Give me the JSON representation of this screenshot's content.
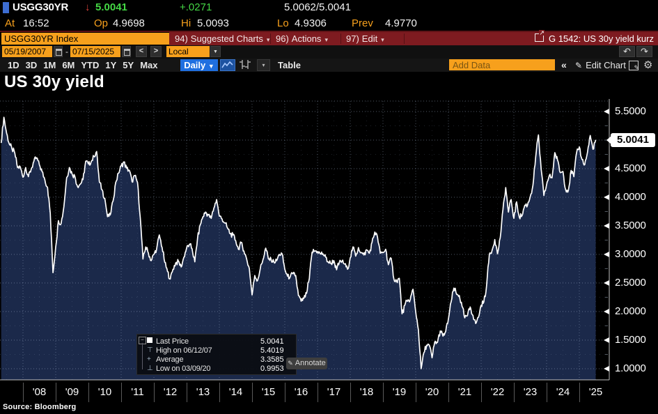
{
  "ticker": {
    "symbol": "USGG30YR",
    "last": "5.0041",
    "change": "+.0271",
    "bid_ask": "5.0062/5.0041",
    "at_label": "At",
    "time": "16:52",
    "open_label": "Op",
    "open": "4.9698",
    "high_label": "Hi",
    "high": "5.0093",
    "low_label": "Lo",
    "low": "4.9306",
    "prev_label": "Prev",
    "prev": "4.9770"
  },
  "menu": {
    "security_input": "USGG30YR Index",
    "suggested_key": "94)",
    "suggested_label": "Suggested Charts",
    "actions_key": "96)",
    "actions_label": "Actions",
    "edit_key": "97)",
    "edit_label": "Edit",
    "chart_ref": "G 1542: US 30y yield kurz"
  },
  "range": {
    "from": "05/19/2007",
    "separator": "-",
    "to": "07/15/2025",
    "currency": "Local CCY"
  },
  "toolbar": {
    "periods": [
      "1D",
      "3D",
      "1M",
      "6M",
      "YTD",
      "1Y",
      "5Y",
      "Max"
    ],
    "frequency": "Daily",
    "table": "Table",
    "add_data_placeholder": "Add Data",
    "collapse": "«",
    "edit_chart": "Edit Chart"
  },
  "icons": {
    "down_arrow": "↓",
    "capture_arrow": "↘",
    "export_arrow": "↗",
    "dropdown": "▾",
    "dropdown_solid": "▼",
    "prev": "<",
    "next": ">",
    "undo": "↶",
    "redo": "↷",
    "pencil": "✎",
    "gear": "⚙",
    "expander_minus": "−",
    "high_marker": "⊤",
    "avg_marker": "+",
    "low_marker": "⊥"
  },
  "colors": {
    "amber": "#f7a01c",
    "green": "#45d845",
    "menu_red": "#7e1b20",
    "down_red": "#e0443c",
    "active_blue": "#1f6fe0",
    "area_fill": "#1b294a",
    "line": "#ffffff"
  },
  "chart": {
    "title": "US 30y yield",
    "source": "Source: Bloomberg",
    "price_tag": "5.0041",
    "y_labels": [
      {
        "v": 5.5,
        "label": "5.5000"
      },
      {
        "v": 4.5,
        "label": "4.5000"
      },
      {
        "v": 4.0,
        "label": "4.0000"
      },
      {
        "v": 3.5,
        "label": "3.5000"
      },
      {
        "v": 3.0,
        "label": "3.0000"
      },
      {
        "v": 2.5,
        "label": "2.5000"
      },
      {
        "v": 2.0,
        "label": "2.0000"
      },
      {
        "v": 1.5,
        "label": "1.5000"
      },
      {
        "v": 1.0,
        "label": "1.0000"
      }
    ],
    "x_labels": [
      "'08",
      "'09",
      "'10",
      "'11",
      "'12",
      "'13",
      "'14",
      "'15",
      "'16",
      "'17",
      "'18",
      "'19",
      "'20",
      "'21",
      "'22",
      "'23",
      "'24",
      "'25"
    ],
    "legend": {
      "rows": [
        {
          "marker": "last",
          "label": "Last Price",
          "value": "5.0041"
        },
        {
          "marker": "high",
          "label": "High on 06/12/07",
          "value": "5.4019"
        },
        {
          "marker": "average",
          "label": "Average",
          "value": "3.3585"
        },
        {
          "marker": "low",
          "label": "Low on 03/09/20",
          "value": "0.9953"
        }
      ],
      "annotate": "Annotate"
    }
  },
  "chart_data": {
    "type": "line",
    "style": "line-with-area-fill",
    "title": "US 30y yield",
    "series_name": "USGG30YR Index (US 30y Treasury yield)",
    "x_start": "2007-05",
    "x_end": "2025-07",
    "frequency": "monthly",
    "ylim": [
      0.8,
      5.7
    ],
    "y_ticks": [
      1.0,
      1.5,
      2.0,
      2.5,
      3.0,
      3.5,
      4.0,
      4.5,
      5.0,
      5.5
    ],
    "x_tick_years": [
      "'08",
      "'09",
      "'10",
      "'11",
      "'12",
      "'13",
      "'14",
      "'15",
      "'16",
      "'17",
      "'18",
      "'19",
      "'20",
      "'21",
      "'22",
      "'23",
      "'24",
      "'25"
    ],
    "grid": "dotted",
    "legend_position": "bottom-left-inside",
    "last": 5.0041,
    "high": {
      "date": "06/12/07",
      "value": 5.4019
    },
    "average": 3.3585,
    "low": {
      "date": "03/09/20",
      "value": 0.9953
    },
    "values": [
      4.95,
      5.4,
      5.12,
      4.93,
      4.84,
      4.77,
      4.52,
      4.53,
      4.35,
      4.52,
      4.36,
      4.49,
      4.63,
      4.69,
      4.57,
      4.45,
      4.31,
      4.17,
      3.72,
      2.68,
      3.13,
      3.59,
      3.54,
      3.84,
      4.34,
      4.52,
      4.41,
      4.37,
      4.19,
      4.23,
      4.31,
      4.63,
      4.58,
      4.62,
      4.72,
      4.8,
      4.27,
      4.13,
      3.98,
      3.66,
      3.69,
      3.93,
      4.26,
      4.42,
      4.55,
      4.62,
      4.51,
      4.47,
      4.27,
      4.38,
      4.26,
      3.65,
      2.92,
      3.13,
      3.02,
      2.89,
      3.0,
      3.09,
      3.34,
      3.12,
      2.86,
      2.7,
      2.57,
      2.74,
      2.85,
      2.88,
      2.78,
      2.95,
      3.11,
      3.17,
      3.1,
      2.87,
      3.28,
      3.52,
      3.66,
      3.74,
      3.69,
      3.63,
      3.81,
      3.96,
      3.67,
      3.62,
      3.55,
      3.46,
      3.36,
      3.34,
      3.24,
      3.09,
      3.21,
      3.06,
      2.92,
      2.75,
      2.29,
      2.63,
      2.54,
      2.75,
      2.91,
      3.11,
      2.92,
      2.91,
      2.87,
      2.89,
      3.0,
      3.01,
      2.74,
      2.62,
      2.61,
      2.66,
      2.63,
      2.28,
      2.18,
      2.23,
      2.32,
      2.58,
      3.04,
      3.06,
      3.05,
      3.01,
      3.01,
      2.95,
      2.86,
      2.84,
      2.89,
      2.73,
      2.86,
      2.88,
      2.83,
      2.74,
      2.94,
      3.13,
      2.97,
      3.12,
      3.03,
      2.99,
      3.08,
      3.02,
      3.21,
      3.39,
      3.3,
      3.02,
      3.03,
      3.09,
      2.82,
      2.93,
      2.57,
      2.53,
      2.58,
      1.96,
      2.11,
      2.18,
      2.21,
      2.39,
      2.0,
      1.68,
      1.0,
      1.28,
      1.41,
      1.41,
      1.19,
      1.47,
      1.46,
      1.66,
      1.57,
      1.65,
      1.87,
      2.17,
      2.41,
      2.3,
      2.28,
      2.09,
      1.89,
      1.93,
      2.08,
      1.93,
      1.79,
      1.9,
      2.11,
      2.17,
      2.45,
      3.0,
      3.07,
      3.26,
      3.01,
      3.29,
      3.78,
      4.17,
      3.74,
      3.96,
      3.63,
      3.92,
      3.65,
      3.68,
      3.86,
      3.86,
      4.01,
      4.21,
      4.7,
      5.09,
      4.49,
      4.03,
      4.22,
      4.38,
      4.34,
      4.78,
      4.65,
      4.43,
      4.45,
      4.13,
      4.12,
      4.47,
      4.36,
      4.78,
      4.88,
      4.66,
      4.57,
      4.79,
      5.08,
      4.84,
      5.0041
    ]
  }
}
